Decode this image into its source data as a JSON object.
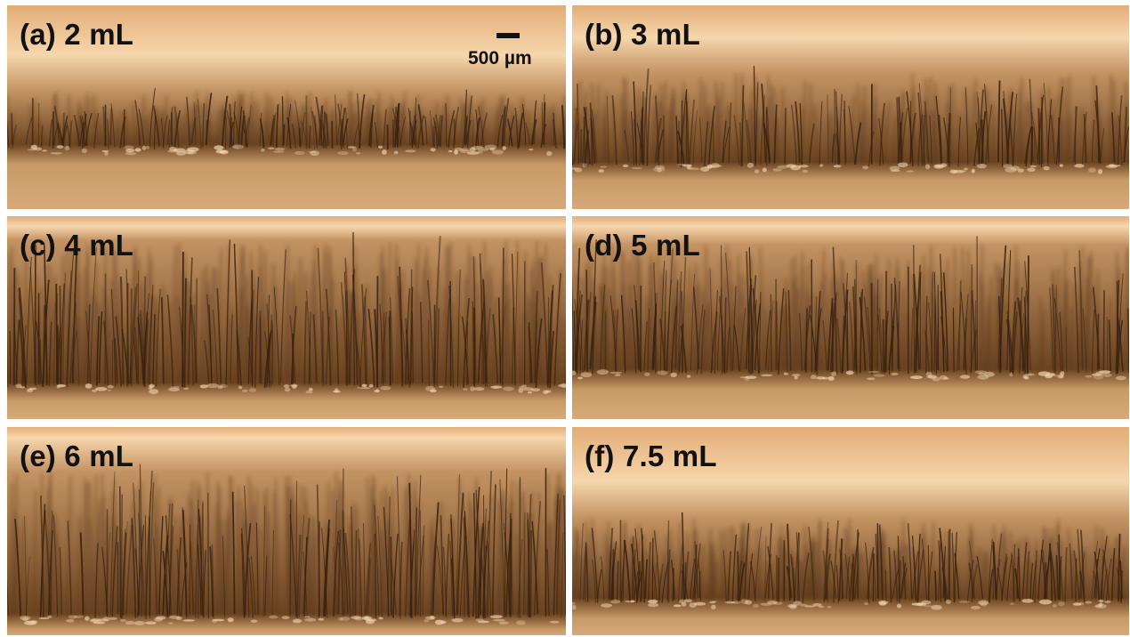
{
  "panels": [
    {
      "id": "a",
      "label": "(a) 2 mL",
      "fiber_level": 0.35
    },
    {
      "id": "b",
      "label": "(b) 3 mL",
      "fiber_level": 0.55
    },
    {
      "id": "c",
      "label": "(c) 4 mL",
      "fiber_level": 0.75
    },
    {
      "id": "d",
      "label": "(d) 5 mL",
      "fiber_level": 0.72
    },
    {
      "id": "e",
      "label": "(e) 6 mL",
      "fiber_level": 0.8
    },
    {
      "id": "f",
      "label": "(f) 7.5 mL",
      "fiber_level": 0.45
    }
  ],
  "scale_bar": {
    "label": "500 µm"
  },
  "colors": {
    "background_light": "#f6d6ac",
    "background_mid": "#e3ad77",
    "fiber_dark": "#3a2210",
    "base_band": "#c99a68"
  }
}
